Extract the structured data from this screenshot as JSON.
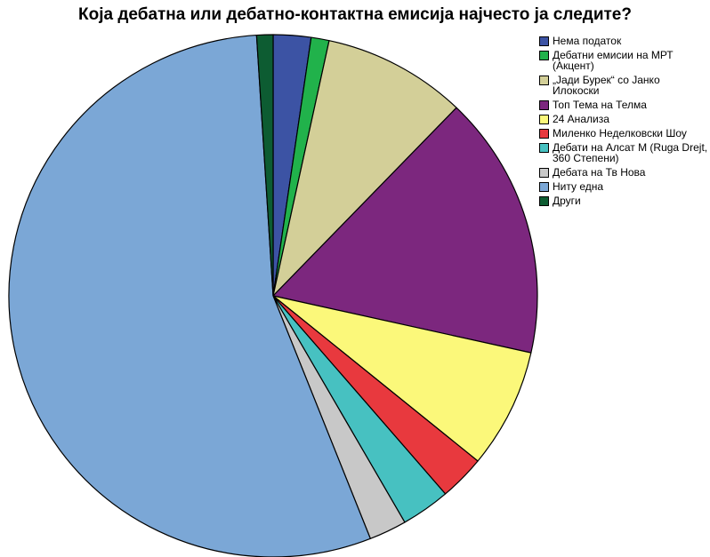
{
  "chart_data": {
    "type": "pie",
    "title": "Која дебатна или дебатно-контактна емисија најчесто ја следите?",
    "start_angle_deg": 0,
    "direction": "clockwise",
    "legend_position": "right",
    "slices": [
      {
        "label": "Нема податок",
        "value": 2.3,
        "color": "#3c53a4"
      },
      {
        "label": "Дебатни емисии на МРТ (Акцент)",
        "value": 1.1,
        "color": "#21b24b"
      },
      {
        "label": "„Јади Бурек“ со Јанко Илокоски",
        "value": 8.8,
        "color": "#d3cf98"
      },
      {
        "label": "Топ Тема на Телма",
        "value": 16.3,
        "color": "#7c277e"
      },
      {
        "label": "24 Анализа",
        "value": 7.4,
        "color": "#fbf87a"
      },
      {
        "label": "Миленко Неделковски Шоу",
        "value": 2.8,
        "color": "#e8393e"
      },
      {
        "label": "Дебати на Алсат М (Ruga Drejt, 360 Степени)",
        "value": 3.0,
        "color": "#47c1c1"
      },
      {
        "label": "Дебата на Тв Нова",
        "value": 2.3,
        "color": "#c8c8c8"
      },
      {
        "label": "Ниту една",
        "value": 55.0,
        "color": "#7ba7d6"
      },
      {
        "label": "Други",
        "value": 1.0,
        "color": "#0d5c32"
      }
    ]
  }
}
